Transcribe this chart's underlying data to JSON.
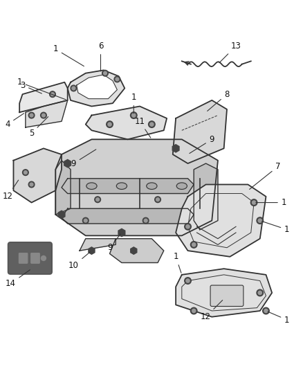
{
  "background_color": "#ffffff",
  "fig_width": 4.38,
  "fig_height": 5.33,
  "dpi": 100,
  "line_color": "#333333",
  "label_fontsize": 8.5
}
